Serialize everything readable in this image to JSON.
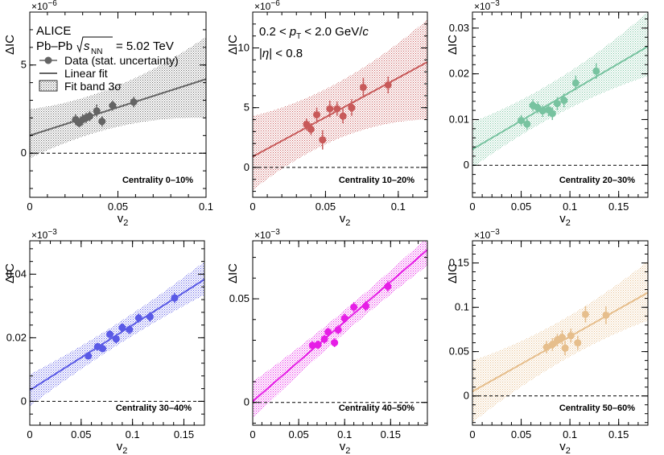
{
  "figure": {
    "annotation": {
      "experiment": "ALICE",
      "system": "Pb–Pb",
      "energy_label": "s",
      "energy_sub": "NN",
      "energy_value": "= 5.02 TeV",
      "pt_range": "0.2 < p_T < 2.0 GeV/c",
      "pt_pre": "0.2 <",
      "pt_var": "p",
      "pt_sub": "T",
      "pt_post": "< 2.0 GeV/",
      "pt_unit_c": "c",
      "eta_range": "|η| < 0.8",
      "eta_pre": "|",
      "eta_var": "η",
      "eta_post": "| < 0.8"
    },
    "legend": {
      "data": "Data (stat. uncertainty)",
      "fit": "Linear fit",
      "band": "Fit band 3σ"
    }
  },
  "chart_data": [
    {
      "type": "scatter",
      "title": "Centrality  0–10%",
      "xlabel": "v",
      "xlabel_sub": "2",
      "ylabel": "ΔIC",
      "y_scale_label": "×10",
      "y_scale_exp": "−6",
      "color": "#646464",
      "xlim": [
        0,
        0.1
      ],
      "ylim": [
        -2.5,
        8.0
      ],
      "xticks": [
        0,
        0.05,
        0.1
      ],
      "xtick_labels": [
        "0",
        "0.05",
        "0.1"
      ],
      "yticks": [
        0,
        5
      ],
      "ytick_labels": [
        "0",
        "5"
      ],
      "fit": {
        "intercept": 1.0,
        "slope": 32.0
      },
      "band": {
        "left": [
          -0.5,
          2.3
        ],
        "right": [
          2.0,
          6.6
        ]
      },
      "points": [
        {
          "x": 0.026,
          "y": 1.9,
          "err": 0.3
        },
        {
          "x": 0.028,
          "y": 1.7,
          "err": 0.25
        },
        {
          "x": 0.03,
          "y": 1.9,
          "err": 0.3
        },
        {
          "x": 0.032,
          "y": 2.0,
          "err": 0.3
        },
        {
          "x": 0.034,
          "y": 2.1,
          "err": 0.3
        },
        {
          "x": 0.038,
          "y": 2.4,
          "err": 0.35
        },
        {
          "x": 0.041,
          "y": 1.8,
          "err": 0.3
        },
        {
          "x": 0.047,
          "y": 2.7,
          "err": 0.3
        },
        {
          "x": 0.059,
          "y": 2.9,
          "err": 0.3
        }
      ]
    },
    {
      "type": "scatter",
      "title": "Centrality  10–20%",
      "xlabel": "v",
      "xlabel_sub": "2",
      "ylabel": "ΔIC",
      "y_scale_label": "×10",
      "y_scale_exp": "−6",
      "color": "#c85a5a",
      "xlim": [
        0,
        0.12
      ],
      "ylim": [
        -2.5,
        13.0
      ],
      "xticks": [
        0,
        0.05,
        0.1
      ],
      "xtick_labels": [
        "0",
        "0.05",
        "0.1"
      ],
      "yticks": [
        0,
        5,
        10
      ],
      "ytick_labels": [
        "0",
        "5",
        "10"
      ],
      "fit": {
        "intercept": 0.9,
        "slope": 66.0
      },
      "band": {
        "left": [
          -2.5,
          3.7
        ],
        "right": [
          4.0,
          12.4
        ]
      },
      "points": [
        {
          "x": 0.037,
          "y": 3.6,
          "err": 0.5
        },
        {
          "x": 0.04,
          "y": 3.2,
          "err": 0.5
        },
        {
          "x": 0.044,
          "y": 4.4,
          "err": 0.6
        },
        {
          "x": 0.048,
          "y": 2.3,
          "err": 0.8
        },
        {
          "x": 0.053,
          "y": 4.9,
          "err": 0.7
        },
        {
          "x": 0.058,
          "y": 4.9,
          "err": 0.6
        },
        {
          "x": 0.062,
          "y": 4.3,
          "err": 0.6
        },
        {
          "x": 0.068,
          "y": 5.0,
          "err": 0.7
        },
        {
          "x": 0.076,
          "y": 6.7,
          "err": 0.8
        },
        {
          "x": 0.093,
          "y": 6.9,
          "err": 0.7
        }
      ]
    },
    {
      "type": "scatter",
      "title": "Centrality  20–30%",
      "xlabel": "v",
      "xlabel_sub": "2",
      "ylabel": "ΔIC",
      "y_scale_label": "×10",
      "y_scale_exp": "−3",
      "color": "#78c3a0",
      "xlim": [
        0,
        0.18
      ],
      "ylim": [
        -0.007,
        0.0335
      ],
      "xticks": [
        0,
        0.05,
        0.1,
        0.15
      ],
      "xtick_labels": [
        "0",
        "0.05",
        "0.1",
        "0.15"
      ],
      "yticks": [
        0,
        0.01,
        0.02,
        0.03
      ],
      "ytick_labels": [
        "0",
        "0.01",
        "0.02",
        "0.03"
      ],
      "fit": {
        "intercept": 0.0035,
        "slope": 0.125
      },
      "band": {
        "left": [
          -0.0025,
          0.0075
        ],
        "right": [
          0.0195,
          0.0335
        ]
      },
      "points": [
        {
          "x": 0.05,
          "y": 0.0098,
          "err": 0.0012
        },
        {
          "x": 0.056,
          "y": 0.009,
          "err": 0.0012
        },
        {
          "x": 0.062,
          "y": 0.0131,
          "err": 0.0013
        },
        {
          "x": 0.067,
          "y": 0.0126,
          "err": 0.0013
        },
        {
          "x": 0.072,
          "y": 0.0119,
          "err": 0.0013
        },
        {
          "x": 0.078,
          "y": 0.0121,
          "err": 0.0014
        },
        {
          "x": 0.082,
          "y": 0.0113,
          "err": 0.0014
        },
        {
          "x": 0.087,
          "y": 0.0135,
          "err": 0.0014
        },
        {
          "x": 0.094,
          "y": 0.0142,
          "err": 0.0015
        },
        {
          "x": 0.106,
          "y": 0.018,
          "err": 0.0016
        },
        {
          "x": 0.127,
          "y": 0.0206,
          "err": 0.0017
        }
      ]
    },
    {
      "type": "scatter",
      "title": "Centrality  30–40%",
      "xlabel": "v",
      "xlabel_sub": "2",
      "ylabel": "ΔIC",
      "y_scale_label": "×10",
      "y_scale_exp": "−3",
      "color": "#5a5ae6",
      "xlim": [
        0,
        0.17
      ],
      "ylim": [
        -0.0075,
        0.0505
      ],
      "xticks": [
        0,
        0.05,
        0.1,
        0.15
      ],
      "xtick_labels": [
        "0",
        "0.05",
        "0.1",
        "0.15"
      ],
      "yticks": [
        0,
        0.02,
        0.04
      ],
      "ytick_labels": [
        "0",
        "0.02",
        "0.04"
      ],
      "fit": {
        "intercept": 0.0035,
        "slope": 0.205
      },
      "band": {
        "left": [
          -0.0015,
          0.0085
        ],
        "right": [
          0.0335,
          0.044
        ]
      },
      "points": [
        {
          "x": 0.057,
          "y": 0.0143,
          "err": 0.0012
        },
        {
          "x": 0.066,
          "y": 0.0172,
          "err": 0.0012
        },
        {
          "x": 0.071,
          "y": 0.0166,
          "err": 0.0012
        },
        {
          "x": 0.078,
          "y": 0.0211,
          "err": 0.0013
        },
        {
          "x": 0.084,
          "y": 0.0196,
          "err": 0.0013
        },
        {
          "x": 0.09,
          "y": 0.0232,
          "err": 0.0013
        },
        {
          "x": 0.097,
          "y": 0.0226,
          "err": 0.0014
        },
        {
          "x": 0.106,
          "y": 0.0262,
          "err": 0.0014
        },
        {
          "x": 0.117,
          "y": 0.0266,
          "err": 0.0015
        },
        {
          "x": 0.141,
          "y": 0.0325,
          "err": 0.0016
        }
      ]
    },
    {
      "type": "scatter",
      "title": "Centrality  40–50%",
      "xlabel": "v",
      "xlabel_sub": "2",
      "ylabel": "ΔIC",
      "y_scale_label": "×10",
      "y_scale_exp": "−3",
      "color": "#e61ee6",
      "xlim": [
        0,
        0.19
      ],
      "ylim": [
        -0.011,
        0.078
      ],
      "xticks": [
        0,
        0.05,
        0.1,
        0.15
      ],
      "xtick_labels": [
        "0",
        "0.05",
        "0.1",
        "0.15"
      ],
      "yticks": [
        0,
        0.05
      ],
      "ytick_labels": [
        "0",
        "0.05"
      ],
      "fit": {
        "intercept": 0.0005,
        "slope": 0.385
      },
      "band": {
        "left": [
          -0.009,
          0.009
        ],
        "right": [
          0.066,
          0.08
        ]
      },
      "points": [
        {
          "x": 0.065,
          "y": 0.0275,
          "err": 0.002
        },
        {
          "x": 0.071,
          "y": 0.0278,
          "err": 0.002
        },
        {
          "x": 0.078,
          "y": 0.0305,
          "err": 0.0021
        },
        {
          "x": 0.082,
          "y": 0.034,
          "err": 0.0021
        },
        {
          "x": 0.089,
          "y": 0.0288,
          "err": 0.0021
        },
        {
          "x": 0.093,
          "y": 0.035,
          "err": 0.0022
        },
        {
          "x": 0.1,
          "y": 0.0405,
          "err": 0.0023
        },
        {
          "x": 0.11,
          "y": 0.046,
          "err": 0.0024
        },
        {
          "x": 0.123,
          "y": 0.0465,
          "err": 0.0025
        },
        {
          "x": 0.147,
          "y": 0.056,
          "err": 0.0027
        }
      ]
    },
    {
      "type": "scatter",
      "title": "Centrality  50–60%",
      "xlabel": "v",
      "xlabel_sub": "2",
      "ylabel": "ΔIC",
      "y_scale_label": "×10",
      "y_scale_exp": "−3",
      "color": "#e6be8c",
      "xlim": [
        0,
        0.18
      ],
      "ylim": [
        -0.033,
        0.175
      ],
      "xticks": [
        0,
        0.05,
        0.1,
        0.15
      ],
      "xtick_labels": [
        "0",
        "0.05",
        "0.1",
        "0.15"
      ],
      "yticks": [
        0,
        0.05,
        0.1,
        0.15
      ],
      "ytick_labels": [
        "0",
        "0.05",
        "0.1",
        "0.15"
      ],
      "fit": {
        "intercept": 0.005,
        "slope": 0.62
      },
      "band": {
        "left": [
          -0.03,
          0.04
        ],
        "right": [
          0.085,
          0.152
        ]
      },
      "points": [
        {
          "x": 0.076,
          "y": 0.055,
          "err": 0.007
        },
        {
          "x": 0.082,
          "y": 0.058,
          "err": 0.007
        },
        {
          "x": 0.087,
          "y": 0.063,
          "err": 0.007
        },
        {
          "x": 0.092,
          "y": 0.066,
          "err": 0.008
        },
        {
          "x": 0.095,
          "y": 0.054,
          "err": 0.008
        },
        {
          "x": 0.101,
          "y": 0.068,
          "err": 0.008
        },
        {
          "x": 0.108,
          "y": 0.06,
          "err": 0.008
        },
        {
          "x": 0.116,
          "y": 0.092,
          "err": 0.009
        },
        {
          "x": 0.137,
          "y": 0.091,
          "err": 0.01
        }
      ]
    }
  ]
}
